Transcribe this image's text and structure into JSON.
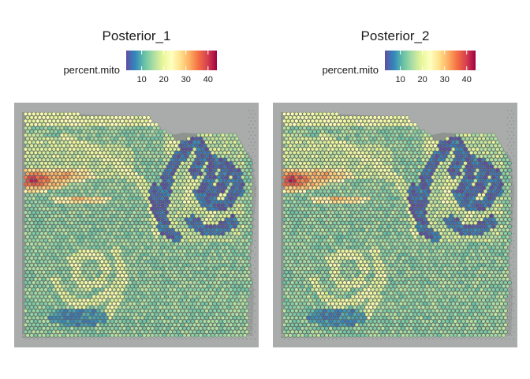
{
  "chart_data": [
    {
      "type": "heatmap",
      "title": "Posterior_1",
      "legend": {
        "label": "percent.mito",
        "position": "top",
        "ticks": [
          10,
          20,
          30,
          40
        ],
        "range": [
          3,
          44
        ],
        "colormap": "Spectral (reversed)",
        "colors": [
          "#5e4fa2",
          "#3288bd",
          "#66c2a5",
          "#abdda4",
          "#e6f598",
          "#ffffbf",
          "#fee08b",
          "#fdae61",
          "#f46d43",
          "#d53e4f",
          "#9e0142"
        ]
      }
    },
    {
      "type": "heatmap",
      "title": "Posterior_2",
      "legend": {
        "label": "percent.mito",
        "position": "top",
        "ticks": [
          10,
          20,
          30,
          40
        ],
        "range": [
          3,
          44
        ],
        "colormap": "Spectral (reversed)",
        "colors": [
          "#5e4fa2",
          "#3288bd",
          "#66c2a5",
          "#abdda4",
          "#e6f598",
          "#ffffbf",
          "#fee08b",
          "#fdae61",
          "#f46d43",
          "#d53e4f",
          "#9e0142"
        ]
      }
    }
  ]
}
